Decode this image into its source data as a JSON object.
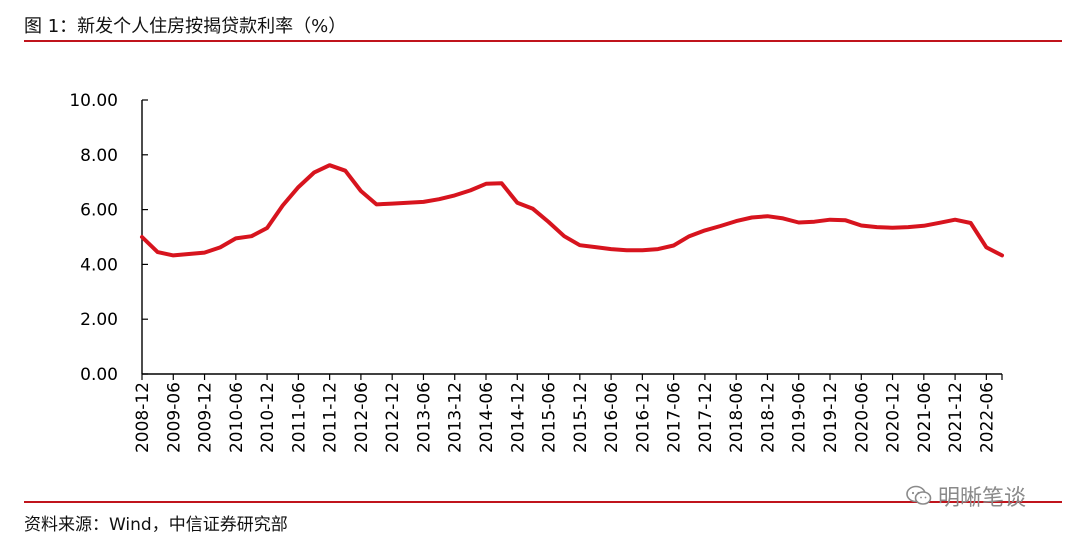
{
  "title": "图 1：新发个人住房按揭贷款利率（%）",
  "source": "资料来源：Wind，中信证券研究部",
  "watermark": "明晰笔谈",
  "colors": {
    "line": "#d7141e",
    "rule": "#c0141c",
    "axis": "#000000"
  },
  "chart_data": {
    "type": "line",
    "title": "",
    "xlabel": "",
    "ylabel": "",
    "ylim": [
      0,
      10
    ],
    "yticks": [
      "0.00",
      "2.00",
      "4.00",
      "6.00",
      "8.00",
      "10.00"
    ],
    "xticks": [
      "2008-12",
      "2009-06",
      "2009-12",
      "2010-06",
      "2010-12",
      "2011-06",
      "2011-12",
      "2012-06",
      "2012-12",
      "2013-06",
      "2013-12",
      "2014-06",
      "2014-12",
      "2015-06",
      "2015-12",
      "2016-06",
      "2016-12",
      "2017-06",
      "2017-12",
      "2018-06",
      "2018-12",
      "2019-06",
      "2019-12",
      "2020-06",
      "2020-12",
      "2021-06",
      "2021-12",
      "2022-06"
    ],
    "grid": false,
    "legend": "none",
    "x": [
      "2008-12",
      "2009-03",
      "2009-06",
      "2009-09",
      "2009-12",
      "2010-03",
      "2010-06",
      "2010-09",
      "2010-12",
      "2011-03",
      "2011-06",
      "2011-09",
      "2011-12",
      "2012-03",
      "2012-06",
      "2012-09",
      "2012-12",
      "2013-03",
      "2013-06",
      "2013-09",
      "2013-12",
      "2014-03",
      "2014-06",
      "2014-09",
      "2014-12",
      "2015-03",
      "2015-06",
      "2015-09",
      "2015-12",
      "2016-03",
      "2016-06",
      "2016-09",
      "2016-12",
      "2017-03",
      "2017-06",
      "2017-09",
      "2017-12",
      "2018-03",
      "2018-06",
      "2018-09",
      "2018-12",
      "2019-03",
      "2019-06",
      "2019-09",
      "2019-12",
      "2020-03",
      "2020-06",
      "2020-09",
      "2020-12",
      "2021-03",
      "2021-06",
      "2021-09",
      "2021-12",
      "2022-03",
      "2022-06",
      "2022-09"
    ],
    "series": [
      {
        "values": [
          5.0,
          4.45,
          4.33,
          4.38,
          4.43,
          4.62,
          4.95,
          5.03,
          5.33,
          6.15,
          6.82,
          7.35,
          7.62,
          7.42,
          6.68,
          6.19,
          6.22,
          6.25,
          6.28,
          6.38,
          6.52,
          6.7,
          6.94,
          6.96,
          6.25,
          6.03,
          5.55,
          5.03,
          4.7,
          4.63,
          4.56,
          4.52,
          4.52,
          4.56,
          4.69,
          5.03,
          5.24,
          5.4,
          5.58,
          5.71,
          5.76,
          5.68,
          5.53,
          5.56,
          5.63,
          5.61,
          5.42,
          5.36,
          5.34,
          5.36,
          5.41,
          5.52,
          5.63,
          5.51,
          4.62,
          4.33
        ]
      }
    ]
  }
}
